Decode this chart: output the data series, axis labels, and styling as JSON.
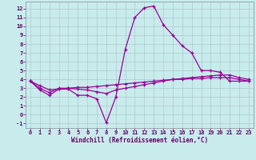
{
  "title": "",
  "xlabel": "Windchill (Refroidissement éolien,°C)",
  "background_color": "#c8ecec",
  "grid_color": "#b0c8d0",
  "line_color": "#990099",
  "x_values": [
    0,
    1,
    2,
    3,
    4,
    5,
    6,
    7,
    8,
    9,
    10,
    11,
    12,
    13,
    14,
    15,
    16,
    17,
    18,
    19,
    20,
    21,
    22,
    23
  ],
  "curve1": [
    3.8,
    2.8,
    2.2,
    2.9,
    2.9,
    2.2,
    2.2,
    1.8,
    -0.9,
    2.0,
    7.4,
    11.0,
    12.1,
    12.3,
    10.2,
    9.0,
    7.8,
    7.0,
    5.0,
    5.0,
    4.8,
    3.8,
    3.8,
    3.8
  ],
  "curve2": [
    3.8,
    3.0,
    2.5,
    3.0,
    3.0,
    2.9,
    2.8,
    2.6,
    2.4,
    2.8,
    3.0,
    3.2,
    3.4,
    3.6,
    3.8,
    4.0,
    4.1,
    4.2,
    4.3,
    4.4,
    4.5,
    4.5,
    4.2,
    4.0
  ],
  "curve3": [
    3.8,
    3.3,
    2.8,
    2.9,
    3.0,
    3.1,
    3.1,
    3.2,
    3.3,
    3.4,
    3.5,
    3.6,
    3.7,
    3.8,
    3.9,
    4.0,
    4.0,
    4.1,
    4.1,
    4.2,
    4.2,
    4.2,
    4.0,
    3.8
  ],
  "ylim": [
    -1.5,
    12.8
  ],
  "xlim": [
    -0.5,
    23.5
  ],
  "yticks": [
    -1,
    0,
    1,
    2,
    3,
    4,
    5,
    6,
    7,
    8,
    9,
    10,
    11,
    12
  ],
  "xticks": [
    0,
    1,
    2,
    3,
    4,
    5,
    6,
    7,
    8,
    9,
    10,
    11,
    12,
    13,
    14,
    15,
    16,
    17,
    18,
    19,
    20,
    21,
    22,
    23
  ],
  "tick_color": "#660066",
  "label_fontsize": 5.0,
  "xlabel_fontsize": 5.5
}
